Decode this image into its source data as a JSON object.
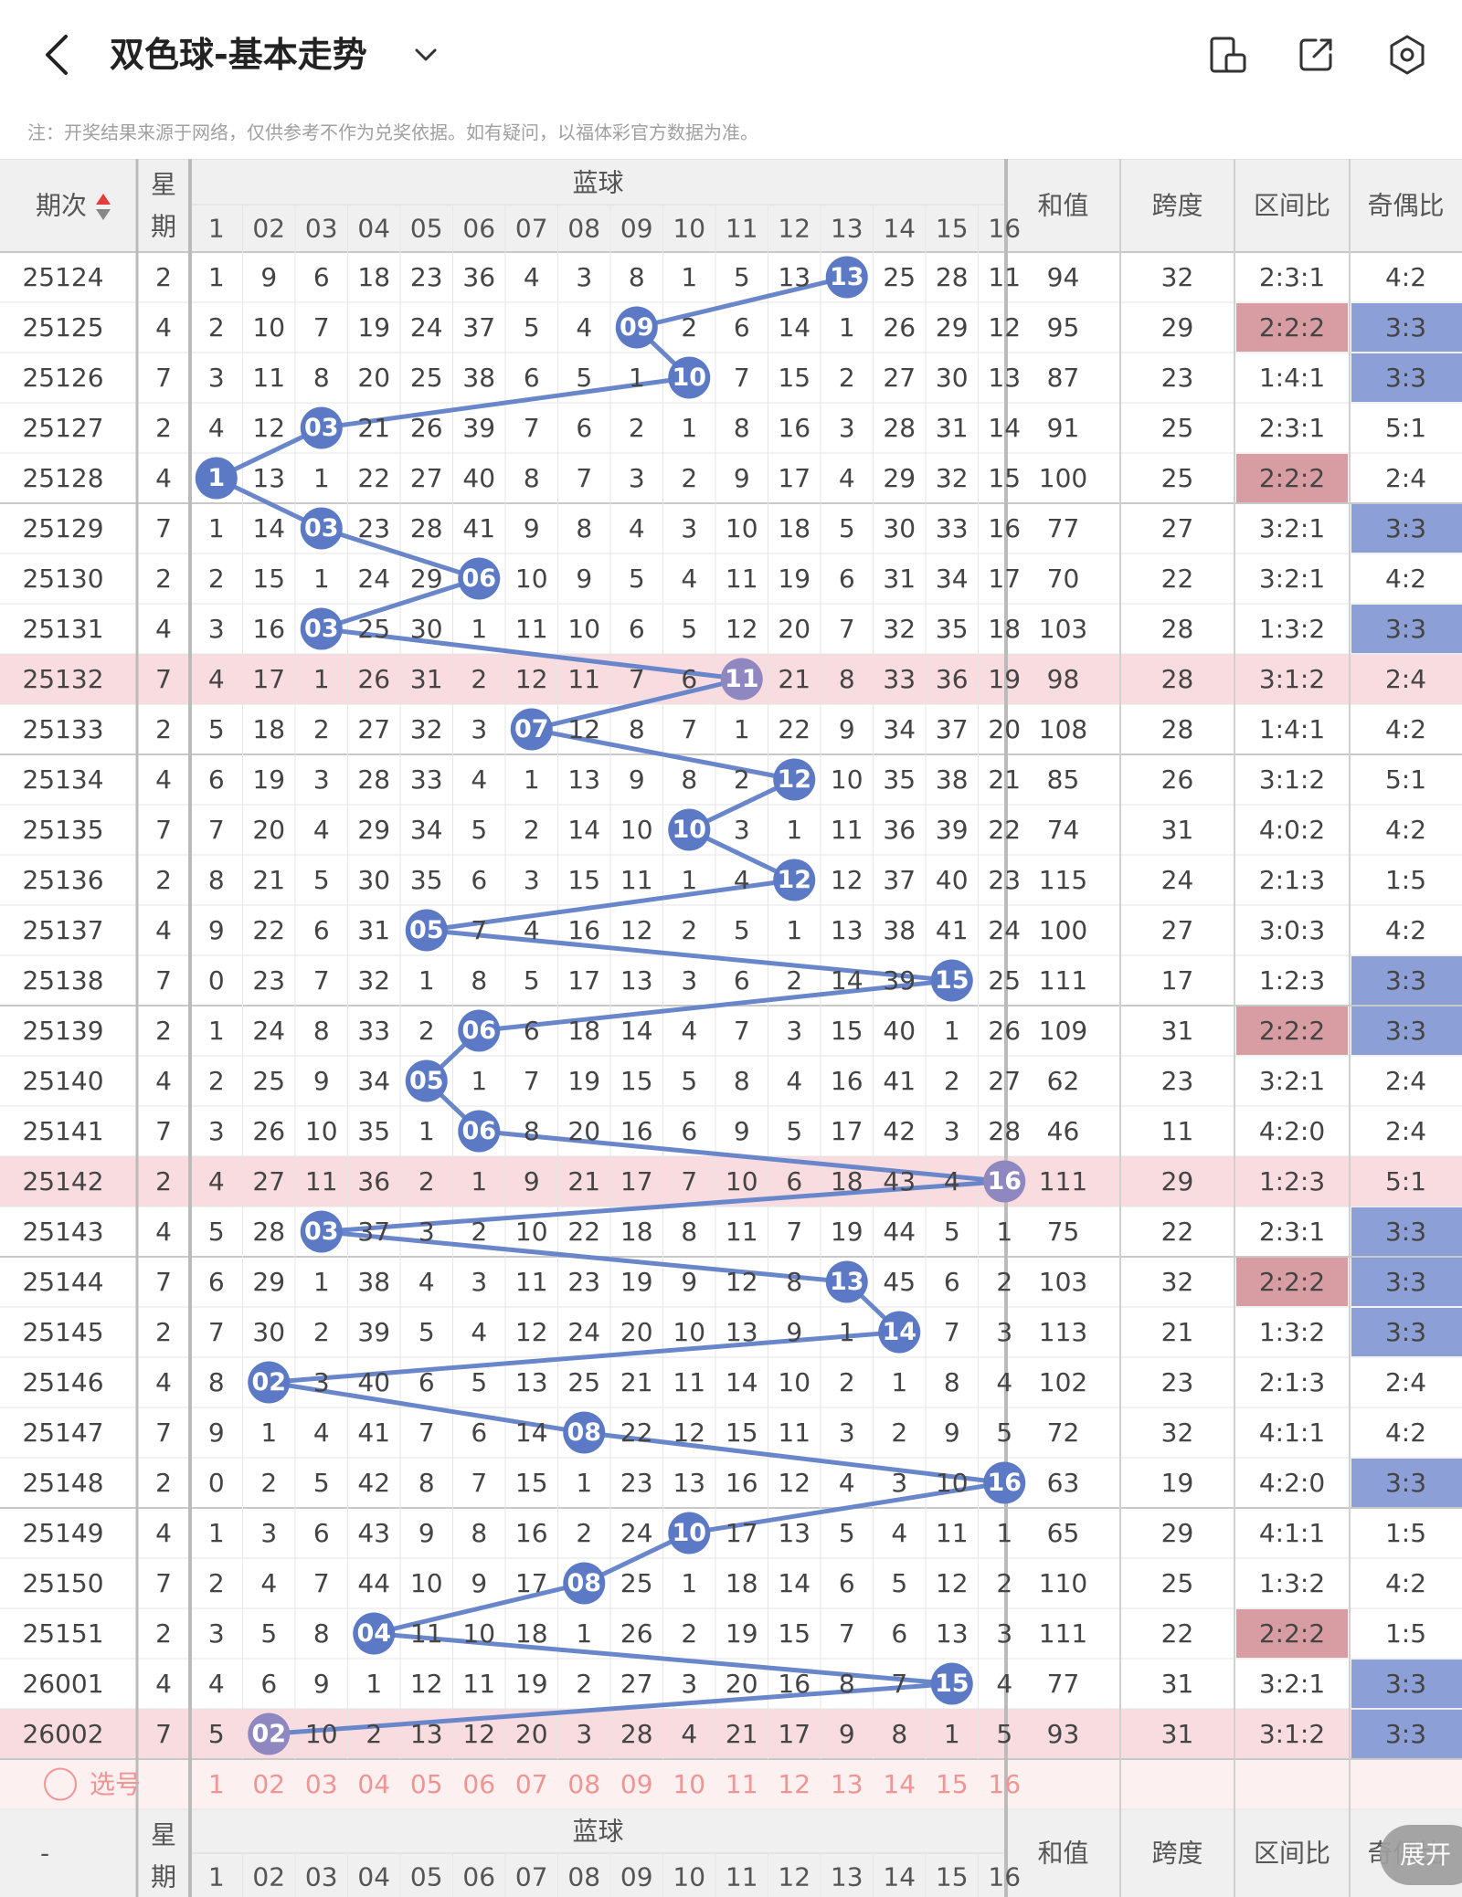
{
  "header": {
    "title": "双色球-基本走势",
    "icons": [
      "back-arrow-icon",
      "chevron-down-icon",
      "device-sync-icon",
      "share-icon",
      "settings-icon"
    ]
  },
  "note": "注：开奖结果来源于网络，仅供参考不作为兑奖依据。如有疑问，以福体彩官方数据为准。",
  "table": {
    "col_period": "期次",
    "col_weekday": "星期",
    "group_blue": "蓝球",
    "blue_numbers": [
      "1",
      "02",
      "03",
      "04",
      "05",
      "06",
      "07",
      "08",
      "09",
      "10",
      "11",
      "12",
      "13",
      "14",
      "15",
      "16"
    ],
    "col_sum": "和值",
    "col_span": "跨度",
    "col_zone": "区间比",
    "col_parity": "奇偶比",
    "footer_period": "-",
    "pick_label": "选号",
    "rows": [
      {
        "period": "25124",
        "wd": "2",
        "c": [
          "1",
          "9",
          "6",
          "18",
          "23",
          "36",
          "4",
          "3",
          "8",
          "1",
          "5",
          "13",
          "13",
          "25",
          "28",
          "11"
        ],
        "blue": 13,
        "sum": "94",
        "span": "32",
        "zone": "2:3:1",
        "parity": "4:2",
        "zone_hl": false,
        "parity_hl": false,
        "row_hl": false
      },
      {
        "period": "25125",
        "wd": "4",
        "c": [
          "2",
          "10",
          "7",
          "19",
          "24",
          "37",
          "5",
          "4",
          "09",
          "2",
          "6",
          "14",
          "1",
          "26",
          "29",
          "12"
        ],
        "blue": 9,
        "sum": "95",
        "span": "29",
        "zone": "2:2:2",
        "parity": "3:3",
        "zone_hl": true,
        "parity_hl": true,
        "row_hl": false
      },
      {
        "period": "25126",
        "wd": "7",
        "c": [
          "3",
          "11",
          "8",
          "20",
          "25",
          "38",
          "6",
          "5",
          "1",
          "10",
          "7",
          "15",
          "2",
          "27",
          "30",
          "13"
        ],
        "blue": 10,
        "sum": "87",
        "span": "23",
        "zone": "1:4:1",
        "parity": "3:3",
        "zone_hl": false,
        "parity_hl": true,
        "row_hl": false
      },
      {
        "period": "25127",
        "wd": "2",
        "c": [
          "4",
          "12",
          "03",
          "21",
          "26",
          "39",
          "7",
          "6",
          "2",
          "1",
          "8",
          "16",
          "3",
          "28",
          "31",
          "14"
        ],
        "blue": 3,
        "sum": "91",
        "span": "25",
        "zone": "2:3:1",
        "parity": "5:1",
        "zone_hl": false,
        "parity_hl": false,
        "row_hl": false
      },
      {
        "period": "25128",
        "wd": "4",
        "c": [
          "1",
          "13",
          "1",
          "22",
          "27",
          "40",
          "8",
          "7",
          "3",
          "2",
          "9",
          "17",
          "4",
          "29",
          "32",
          "15"
        ],
        "blue": 1,
        "sum": "100",
        "span": "25",
        "zone": "2:2:2",
        "parity": "2:4",
        "zone_hl": true,
        "parity_hl": false,
        "row_hl": false
      },
      {
        "period": "25129",
        "wd": "7",
        "c": [
          "1",
          "14",
          "03",
          "23",
          "28",
          "41",
          "9",
          "8",
          "4",
          "3",
          "10",
          "18",
          "5",
          "30",
          "33",
          "16"
        ],
        "blue": 3,
        "sum": "77",
        "span": "27",
        "zone": "3:2:1",
        "parity": "3:3",
        "zone_hl": false,
        "parity_hl": true,
        "row_hl": false
      },
      {
        "period": "25130",
        "wd": "2",
        "c": [
          "2",
          "15",
          "1",
          "24",
          "29",
          "06",
          "10",
          "9",
          "5",
          "4",
          "11",
          "19",
          "6",
          "31",
          "34",
          "17"
        ],
        "blue": 6,
        "sum": "70",
        "span": "22",
        "zone": "3:2:1",
        "parity": "4:2",
        "zone_hl": false,
        "parity_hl": false,
        "row_hl": false
      },
      {
        "period": "25131",
        "wd": "4",
        "c": [
          "3",
          "16",
          "03",
          "25",
          "30",
          "1",
          "11",
          "10",
          "6",
          "5",
          "12",
          "20",
          "7",
          "32",
          "35",
          "18"
        ],
        "blue": 3,
        "sum": "103",
        "span": "28",
        "zone": "1:3:2",
        "parity": "3:3",
        "zone_hl": false,
        "parity_hl": true,
        "row_hl": false
      },
      {
        "period": "25132",
        "wd": "7",
        "c": [
          "4",
          "17",
          "1",
          "26",
          "31",
          "2",
          "12",
          "11",
          "7",
          "6",
          "11",
          "21",
          "8",
          "33",
          "36",
          "19"
        ],
        "blue": 11,
        "sum": "98",
        "span": "28",
        "zone": "3:1:2",
        "parity": "2:4",
        "zone_hl": false,
        "parity_hl": false,
        "row_hl": true
      },
      {
        "period": "25133",
        "wd": "2",
        "c": [
          "5",
          "18",
          "2",
          "27",
          "32",
          "3",
          "07",
          "12",
          "8",
          "7",
          "1",
          "22",
          "9",
          "34",
          "37",
          "20"
        ],
        "blue": 7,
        "sum": "108",
        "span": "28",
        "zone": "1:4:1",
        "parity": "4:2",
        "zone_hl": false,
        "parity_hl": false,
        "row_hl": false
      },
      {
        "period": "25134",
        "wd": "4",
        "c": [
          "6",
          "19",
          "3",
          "28",
          "33",
          "4",
          "1",
          "13",
          "9",
          "8",
          "2",
          "12",
          "10",
          "35",
          "38",
          "21"
        ],
        "blue": 12,
        "sum": "85",
        "span": "26",
        "zone": "3:1:2",
        "parity": "5:1",
        "zone_hl": false,
        "parity_hl": false,
        "row_hl": false
      },
      {
        "period": "25135",
        "wd": "7",
        "c": [
          "7",
          "20",
          "4",
          "29",
          "34",
          "5",
          "2",
          "14",
          "10",
          "10",
          "3",
          "1",
          "11",
          "36",
          "39",
          "22"
        ],
        "blue": 10,
        "sum": "74",
        "span": "31",
        "zone": "4:0:2",
        "parity": "4:2",
        "zone_hl": false,
        "parity_hl": false,
        "row_hl": false
      },
      {
        "period": "25136",
        "wd": "2",
        "c": [
          "8",
          "21",
          "5",
          "30",
          "35",
          "6",
          "3",
          "15",
          "11",
          "1",
          "4",
          "12",
          "12",
          "37",
          "40",
          "23"
        ],
        "blue": 12,
        "sum": "115",
        "span": "24",
        "zone": "2:1:3",
        "parity": "1:5",
        "zone_hl": false,
        "parity_hl": false,
        "row_hl": false
      },
      {
        "period": "25137",
        "wd": "4",
        "c": [
          "9",
          "22",
          "6",
          "31",
          "05",
          "7",
          "4",
          "16",
          "12",
          "2",
          "5",
          "1",
          "13",
          "38",
          "41",
          "24"
        ],
        "blue": 5,
        "sum": "100",
        "span": "27",
        "zone": "3:0:3",
        "parity": "4:2",
        "zone_hl": false,
        "parity_hl": false,
        "row_hl": false
      },
      {
        "period": "25138",
        "wd": "7",
        "c": [
          "0",
          "23",
          "7",
          "32",
          "1",
          "8",
          "5",
          "17",
          "13",
          "3",
          "6",
          "2",
          "14",
          "39",
          "15",
          "25"
        ],
        "blue": 15,
        "sum": "111",
        "span": "17",
        "zone": "1:2:3",
        "parity": "3:3",
        "zone_hl": false,
        "parity_hl": true,
        "row_hl": false
      },
      {
        "period": "25139",
        "wd": "2",
        "c": [
          "1",
          "24",
          "8",
          "33",
          "2",
          "06",
          "6",
          "18",
          "14",
          "4",
          "7",
          "3",
          "15",
          "40",
          "1",
          "26"
        ],
        "blue": 6,
        "sum": "109",
        "span": "31",
        "zone": "2:2:2",
        "parity": "3:3",
        "zone_hl": true,
        "parity_hl": true,
        "row_hl": false
      },
      {
        "period": "25140",
        "wd": "4",
        "c": [
          "2",
          "25",
          "9",
          "34",
          "05",
          "1",
          "7",
          "19",
          "15",
          "5",
          "8",
          "4",
          "16",
          "41",
          "2",
          "27"
        ],
        "blue": 5,
        "sum": "62",
        "span": "23",
        "zone": "3:2:1",
        "parity": "2:4",
        "zone_hl": false,
        "parity_hl": false,
        "row_hl": false
      },
      {
        "period": "25141",
        "wd": "7",
        "c": [
          "3",
          "26",
          "10",
          "35",
          "1",
          "06",
          "8",
          "20",
          "16",
          "6",
          "9",
          "5",
          "17",
          "42",
          "3",
          "28"
        ],
        "blue": 6,
        "sum": "46",
        "span": "11",
        "zone": "4:2:0",
        "parity": "2:4",
        "zone_hl": false,
        "parity_hl": false,
        "row_hl": false
      },
      {
        "period": "25142",
        "wd": "2",
        "c": [
          "4",
          "27",
          "11",
          "36",
          "2",
          "1",
          "9",
          "21",
          "17",
          "7",
          "10",
          "6",
          "18",
          "43",
          "4",
          "16"
        ],
        "blue": 16,
        "sum": "111",
        "span": "29",
        "zone": "1:2:3",
        "parity": "5:1",
        "zone_hl": false,
        "parity_hl": false,
        "row_hl": true
      },
      {
        "period": "25143",
        "wd": "4",
        "c": [
          "5",
          "28",
          "03",
          "37",
          "3",
          "2",
          "10",
          "22",
          "18",
          "8",
          "11",
          "7",
          "19",
          "44",
          "5",
          "1"
        ],
        "blue": 3,
        "sum": "75",
        "span": "22",
        "zone": "2:3:1",
        "parity": "3:3",
        "zone_hl": false,
        "parity_hl": true,
        "row_hl": false
      },
      {
        "period": "25144",
        "wd": "7",
        "c": [
          "6",
          "29",
          "1",
          "38",
          "4",
          "3",
          "11",
          "23",
          "19",
          "9",
          "12",
          "8",
          "13",
          "45",
          "6",
          "2"
        ],
        "blue": 13,
        "sum": "103",
        "span": "32",
        "zone": "2:2:2",
        "parity": "3:3",
        "zone_hl": true,
        "parity_hl": true,
        "row_hl": false
      },
      {
        "period": "25145",
        "wd": "2",
        "c": [
          "7",
          "30",
          "2",
          "39",
          "5",
          "4",
          "12",
          "24",
          "20",
          "10",
          "13",
          "9",
          "1",
          "14",
          "7",
          "3"
        ],
        "blue": 14,
        "sum": "113",
        "span": "21",
        "zone": "1:3:2",
        "parity": "3:3",
        "zone_hl": false,
        "parity_hl": true,
        "row_hl": false
      },
      {
        "period": "25146",
        "wd": "4",
        "c": [
          "8",
          "02",
          "3",
          "40",
          "6",
          "5",
          "13",
          "25",
          "21",
          "11",
          "14",
          "10",
          "2",
          "1",
          "8",
          "4"
        ],
        "blue": 2,
        "sum": "102",
        "span": "23",
        "zone": "2:1:3",
        "parity": "2:4",
        "zone_hl": false,
        "parity_hl": false,
        "row_hl": false
      },
      {
        "period": "25147",
        "wd": "7",
        "c": [
          "9",
          "1",
          "4",
          "41",
          "7",
          "6",
          "14",
          "08",
          "22",
          "12",
          "15",
          "11",
          "3",
          "2",
          "9",
          "5"
        ],
        "blue": 8,
        "sum": "72",
        "span": "32",
        "zone": "4:1:1",
        "parity": "4:2",
        "zone_hl": false,
        "parity_hl": false,
        "row_hl": false
      },
      {
        "period": "25148",
        "wd": "2",
        "c": [
          "0",
          "2",
          "5",
          "42",
          "8",
          "7",
          "15",
          "1",
          "23",
          "13",
          "16",
          "12",
          "4",
          "3",
          "10",
          "16"
        ],
        "blue": 16,
        "sum": "63",
        "span": "19",
        "zone": "4:2:0",
        "parity": "3:3",
        "zone_hl": false,
        "parity_hl": true,
        "row_hl": false
      },
      {
        "period": "25149",
        "wd": "4",
        "c": [
          "1",
          "3",
          "6",
          "43",
          "9",
          "8",
          "16",
          "2",
          "24",
          "10",
          "17",
          "13",
          "5",
          "4",
          "11",
          "1"
        ],
        "blue": 10,
        "sum": "65",
        "span": "29",
        "zone": "4:1:1",
        "parity": "1:5",
        "zone_hl": false,
        "parity_hl": false,
        "row_hl": false
      },
      {
        "period": "25150",
        "wd": "7",
        "c": [
          "2",
          "4",
          "7",
          "44",
          "10",
          "9",
          "17",
          "08",
          "25",
          "1",
          "18",
          "14",
          "6",
          "5",
          "12",
          "2"
        ],
        "blue": 8,
        "sum": "110",
        "span": "25",
        "zone": "1:3:2",
        "parity": "4:2",
        "zone_hl": false,
        "parity_hl": false,
        "row_hl": false
      },
      {
        "period": "25151",
        "wd": "2",
        "c": [
          "3",
          "5",
          "8",
          "04",
          "11",
          "10",
          "18",
          "1",
          "26",
          "2",
          "19",
          "15",
          "7",
          "6",
          "13",
          "3"
        ],
        "blue": 4,
        "sum": "111",
        "span": "22",
        "zone": "2:2:2",
        "parity": "1:5",
        "zone_hl": true,
        "parity_hl": false,
        "row_hl": false
      },
      {
        "period": "26001",
        "wd": "4",
        "c": [
          "4",
          "6",
          "9",
          "1",
          "12",
          "11",
          "19",
          "2",
          "27",
          "3",
          "20",
          "16",
          "8",
          "7",
          "15",
          "4"
        ],
        "blue": 15,
        "sum": "77",
        "span": "31",
        "zone": "3:2:1",
        "parity": "3:3",
        "zone_hl": false,
        "parity_hl": true,
        "row_hl": false
      },
      {
        "period": "26002",
        "wd": "7",
        "c": [
          "5",
          "02",
          "10",
          "2",
          "13",
          "12",
          "20",
          "3",
          "28",
          "4",
          "21",
          "17",
          "9",
          "8",
          "1",
          "5"
        ],
        "blue": 2,
        "sum": "93",
        "span": "31",
        "zone": "3:1:2",
        "parity": "3:3",
        "zone_hl": false,
        "parity_hl": true,
        "row_hl": true
      }
    ]
  },
  "fab": {
    "label": "展开"
  },
  "colors": {
    "ball": "#5b79c4",
    "line": "#6a86cb",
    "row_highlight": "#f8dcdf",
    "zone_highlight": "#d89da2",
    "parity_highlight": "#8c9fd6",
    "pick_text": "#f19494"
  }
}
